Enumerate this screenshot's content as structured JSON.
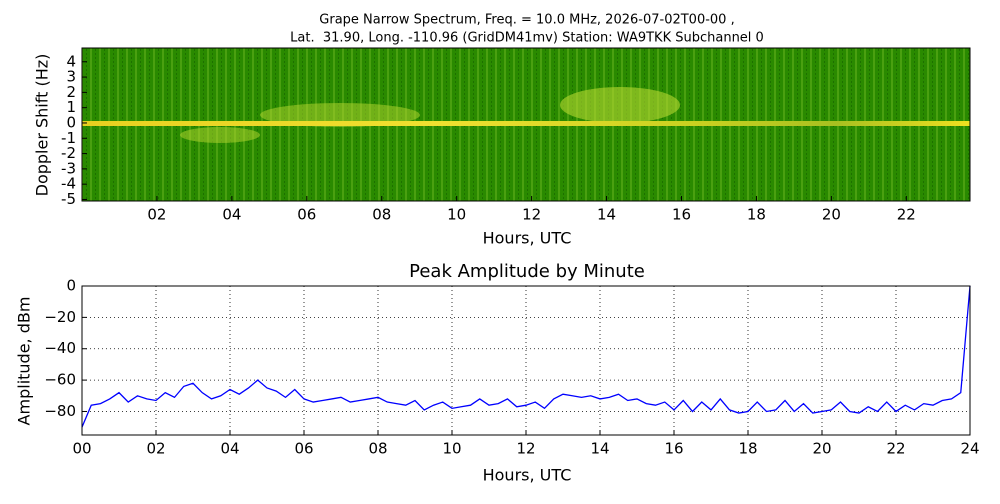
{
  "chart_data": [
    {
      "type": "spectrogram",
      "title": "Grape Narrow Spectrum, Freq. = 10.0 MHz, 2026-07-02T00-00 ,",
      "subtitle": "Lat.  31.90, Long. -110.96 (GridDM41mv) Station: WA9TKK Subchannel 0",
      "xlabel": "Hours, UTC",
      "ylabel": "Doppler Shift (Hz)",
      "xlim": [
        0,
        23.7
      ],
      "ylim": [
        -5.1,
        4.9
      ],
      "xticks": [
        {
          "value": 2,
          "label": "02"
        },
        {
          "value": 4,
          "label": "04"
        },
        {
          "value": 6,
          "label": "06"
        },
        {
          "value": 8,
          "label": "08"
        },
        {
          "value": 10,
          "label": "10"
        },
        {
          "value": 12,
          "label": "12"
        },
        {
          "value": 14,
          "label": "14"
        },
        {
          "value": 16,
          "label": "16"
        },
        {
          "value": 18,
          "label": "18"
        },
        {
          "value": 20,
          "label": "20"
        },
        {
          "value": 22,
          "label": "22"
        }
      ],
      "yticks": [
        -5,
        -4,
        -3,
        -2,
        -1,
        0,
        1,
        2,
        3,
        4
      ],
      "grid": false
    },
    {
      "type": "line",
      "title": "Peak Amplitude by Minute",
      "xlabel": "Hours, UTC",
      "ylabel": "Amplitude, dBm",
      "color": "#0000ff",
      "xlim": [
        0,
        24
      ],
      "ylim": [
        -95,
        0
      ],
      "xticks": [
        {
          "value": 0,
          "label": "00"
        },
        {
          "value": 2,
          "label": "02"
        },
        {
          "value": 4,
          "label": "04"
        },
        {
          "value": 6,
          "label": "06"
        },
        {
          "value": 8,
          "label": "08"
        },
        {
          "value": 10,
          "label": "10"
        },
        {
          "value": 12,
          "label": "12"
        },
        {
          "value": 14,
          "label": "14"
        },
        {
          "value": 16,
          "label": "16"
        },
        {
          "value": 18,
          "label": "18"
        },
        {
          "value": 20,
          "label": "20"
        },
        {
          "value": 22,
          "label": "22"
        },
        {
          "value": 24,
          "label": "24"
        }
      ],
      "yticks": [
        0,
        {
          "value": -20,
          "label": "−20"
        },
        {
          "value": -40,
          "label": "−40"
        },
        {
          "value": -60,
          "label": "−60"
        },
        {
          "value": -80,
          "label": "−80"
        }
      ],
      "grid": true,
      "x": [
        0,
        0.25,
        0.5,
        0.75,
        1,
        1.25,
        1.5,
        1.75,
        2,
        2.25,
        2.5,
        2.75,
        3,
        3.25,
        3.5,
        3.75,
        4,
        4.25,
        4.5,
        4.75,
        5,
        5.25,
        5.5,
        5.75,
        6,
        6.25,
        6.5,
        6.75,
        7,
        7.25,
        7.5,
        7.75,
        8,
        8.25,
        8.5,
        8.75,
        9,
        9.25,
        9.5,
        9.75,
        10,
        10.25,
        10.5,
        10.75,
        11,
        11.25,
        11.5,
        11.75,
        12,
        12.25,
        12.5,
        12.75,
        13,
        13.25,
        13.5,
        13.75,
        14,
        14.25,
        14.5,
        14.75,
        15,
        15.25,
        15.5,
        15.75,
        16,
        16.25,
        16.5,
        16.75,
        17,
        17.25,
        17.5,
        17.75,
        18,
        18.25,
        18.5,
        18.75,
        19,
        19.25,
        19.5,
        19.75,
        20,
        20.25,
        20.5,
        20.75,
        21,
        21.25,
        21.5,
        21.75,
        22,
        22.25,
        22.5,
        22.75,
        23,
        23.25,
        23.5,
        23.75,
        24
      ],
      "values": [
        -90,
        -76,
        -75,
        -72,
        -68,
        -74,
        -70,
        -72,
        -73,
        -68,
        -71,
        -64,
        -62,
        -68,
        -72,
        -70,
        -66,
        -69,
        -65,
        -60,
        -65,
        -67,
        -71,
        -66,
        -72,
        -74,
        -73,
        -72,
        -71,
        -74,
        -73,
        -72,
        -71,
        -74,
        -75,
        -76,
        -73,
        -79,
        -76,
        -74,
        -78,
        -77,
        -76,
        -72,
        -76,
        -75,
        -72,
        -77,
        -76,
        -74,
        -78,
        -72,
        -69,
        -70,
        -71,
        -70,
        -72,
        -71,
        -69,
        -73,
        -72,
        -75,
        -76,
        -74,
        -79,
        -73,
        -80,
        -74,
        -79,
        -72,
        -79,
        -81,
        -80,
        -74,
        -80,
        -79,
        -73,
        -80,
        -75,
        -81,
        -80,
        -79,
        -74,
        -80,
        -81,
        -77,
        -80,
        -74,
        -80,
        -76,
        -79,
        -75,
        -76,
        -73,
        -72,
        -68,
        0
      ]
    }
  ]
}
